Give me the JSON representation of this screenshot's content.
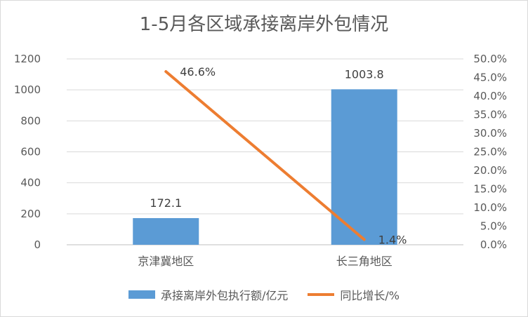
{
  "chart_data": {
    "type": "bar",
    "title": "1-5月各区域承接离岸外包情况",
    "categories": [
      "京津冀地区",
      "长三角地区"
    ],
    "series": [
      {
        "name": "承接离岸外包执行额/亿元",
        "kind": "bar",
        "axis": "left",
        "values": [
          172.1,
          1003.8
        ],
        "labels": [
          "172.1",
          "1003.8"
        ],
        "color": "#5b9bd5"
      },
      {
        "name": "同比增长/%",
        "kind": "line",
        "axis": "right",
        "values": [
          46.6,
          1.4
        ],
        "labels": [
          "46.6%",
          "1.4%"
        ],
        "color": "#ed7d31"
      }
    ],
    "ylim": [
      0,
      1200
    ],
    "yticks": [
      "0",
      "200",
      "400",
      "600",
      "800",
      "1000",
      "1200"
    ],
    "y2lim": [
      0,
      50
    ],
    "y2ticks": [
      "0.0%",
      "5.0%",
      "10.0%",
      "15.0%",
      "20.0%",
      "25.0%",
      "30.0%",
      "35.0%",
      "40.0%",
      "45.0%",
      "50.0%"
    ],
    "grid": true,
    "legend_position": "bottom"
  }
}
